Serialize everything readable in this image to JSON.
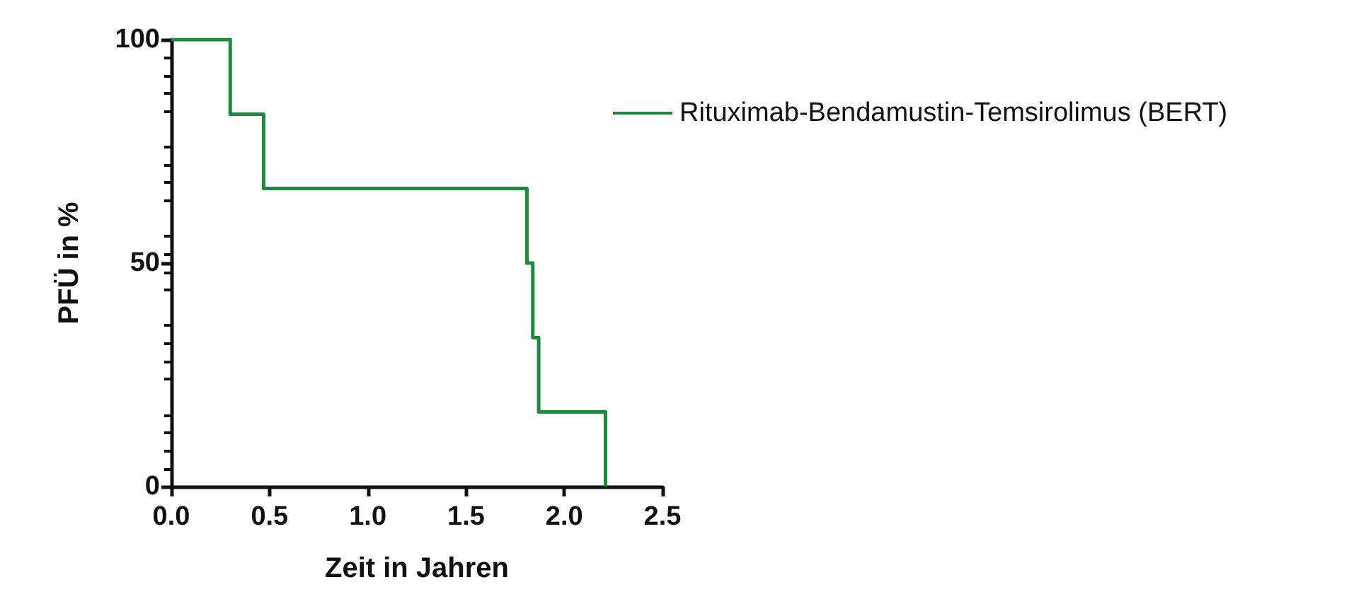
{
  "chart_data": {
    "type": "step",
    "xlabel": "Zeit in Jahren",
    "ylabel": "PFÜ in %",
    "x": [
      0,
      0.3,
      0.47,
      1.81,
      1.84,
      1.87,
      2.21
    ],
    "series": [
      {
        "name": "Rituximab-Bendamustin-Temsirolimus (BERT)",
        "color": "#1e8a3c",
        "values": [
          100,
          83.3,
          66.7,
          50,
          33.3,
          16.7,
          0
        ]
      }
    ],
    "xlim": [
      0,
      2.5
    ],
    "xticks": [
      {
        "value": 0,
        "label": "0.0"
      },
      {
        "value": 0.5,
        "label": "0.5"
      },
      {
        "value": 1,
        "label": "1.0"
      },
      {
        "value": 1.5,
        "label": "1.5"
      },
      {
        "value": 2,
        "label": "2.0"
      },
      {
        "value": 2.5,
        "label": "2.5"
      }
    ],
    "ylim": [
      0,
      100
    ],
    "yticks": [
      0,
      50,
      100
    ],
    "grid": false,
    "legend": "top right",
    "marker": "none",
    "line_style": "solid"
  }
}
